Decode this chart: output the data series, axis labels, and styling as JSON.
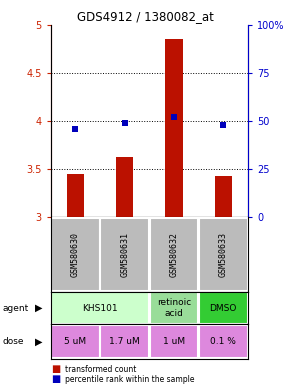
{
  "title": "GDS4912 / 1380082_at",
  "samples": [
    "GSM580630",
    "GSM580631",
    "GSM580632",
    "GSM580633"
  ],
  "bar_values": [
    3.45,
    3.62,
    4.85,
    3.43
  ],
  "percentile_values": [
    46,
    49,
    52,
    48
  ],
  "ylim_left": [
    3.0,
    5.0
  ],
  "ylim_right": [
    0,
    100
  ],
  "yticks_left": [
    3.0,
    3.5,
    4.0,
    4.5,
    5.0
  ],
  "yticks_right": [
    0,
    25,
    50,
    75,
    100
  ],
  "bar_color": "#bb1100",
  "dot_color": "#0000bb",
  "agent_groups": [
    {
      "cols": [
        0,
        1
      ],
      "label": "KHS101",
      "color": "#ccffcc"
    },
    {
      "cols": [
        2
      ],
      "label": "retinoic\nacid",
      "color": "#99dd99"
    },
    {
      "cols": [
        3
      ],
      "label": "DMSO",
      "color": "#33cc33"
    }
  ],
  "dose_labels": [
    "5 uM",
    "1.7 uM",
    "1 uM",
    "0.1 %"
  ],
  "dose_color": "#dd88dd",
  "sample_bg_color": "#bbbbbb",
  "legend_bar_label": "transformed count",
  "legend_dot_label": "percentile rank within the sample",
  "left_axis_color": "#cc2200",
  "right_axis_color": "#0000cc"
}
